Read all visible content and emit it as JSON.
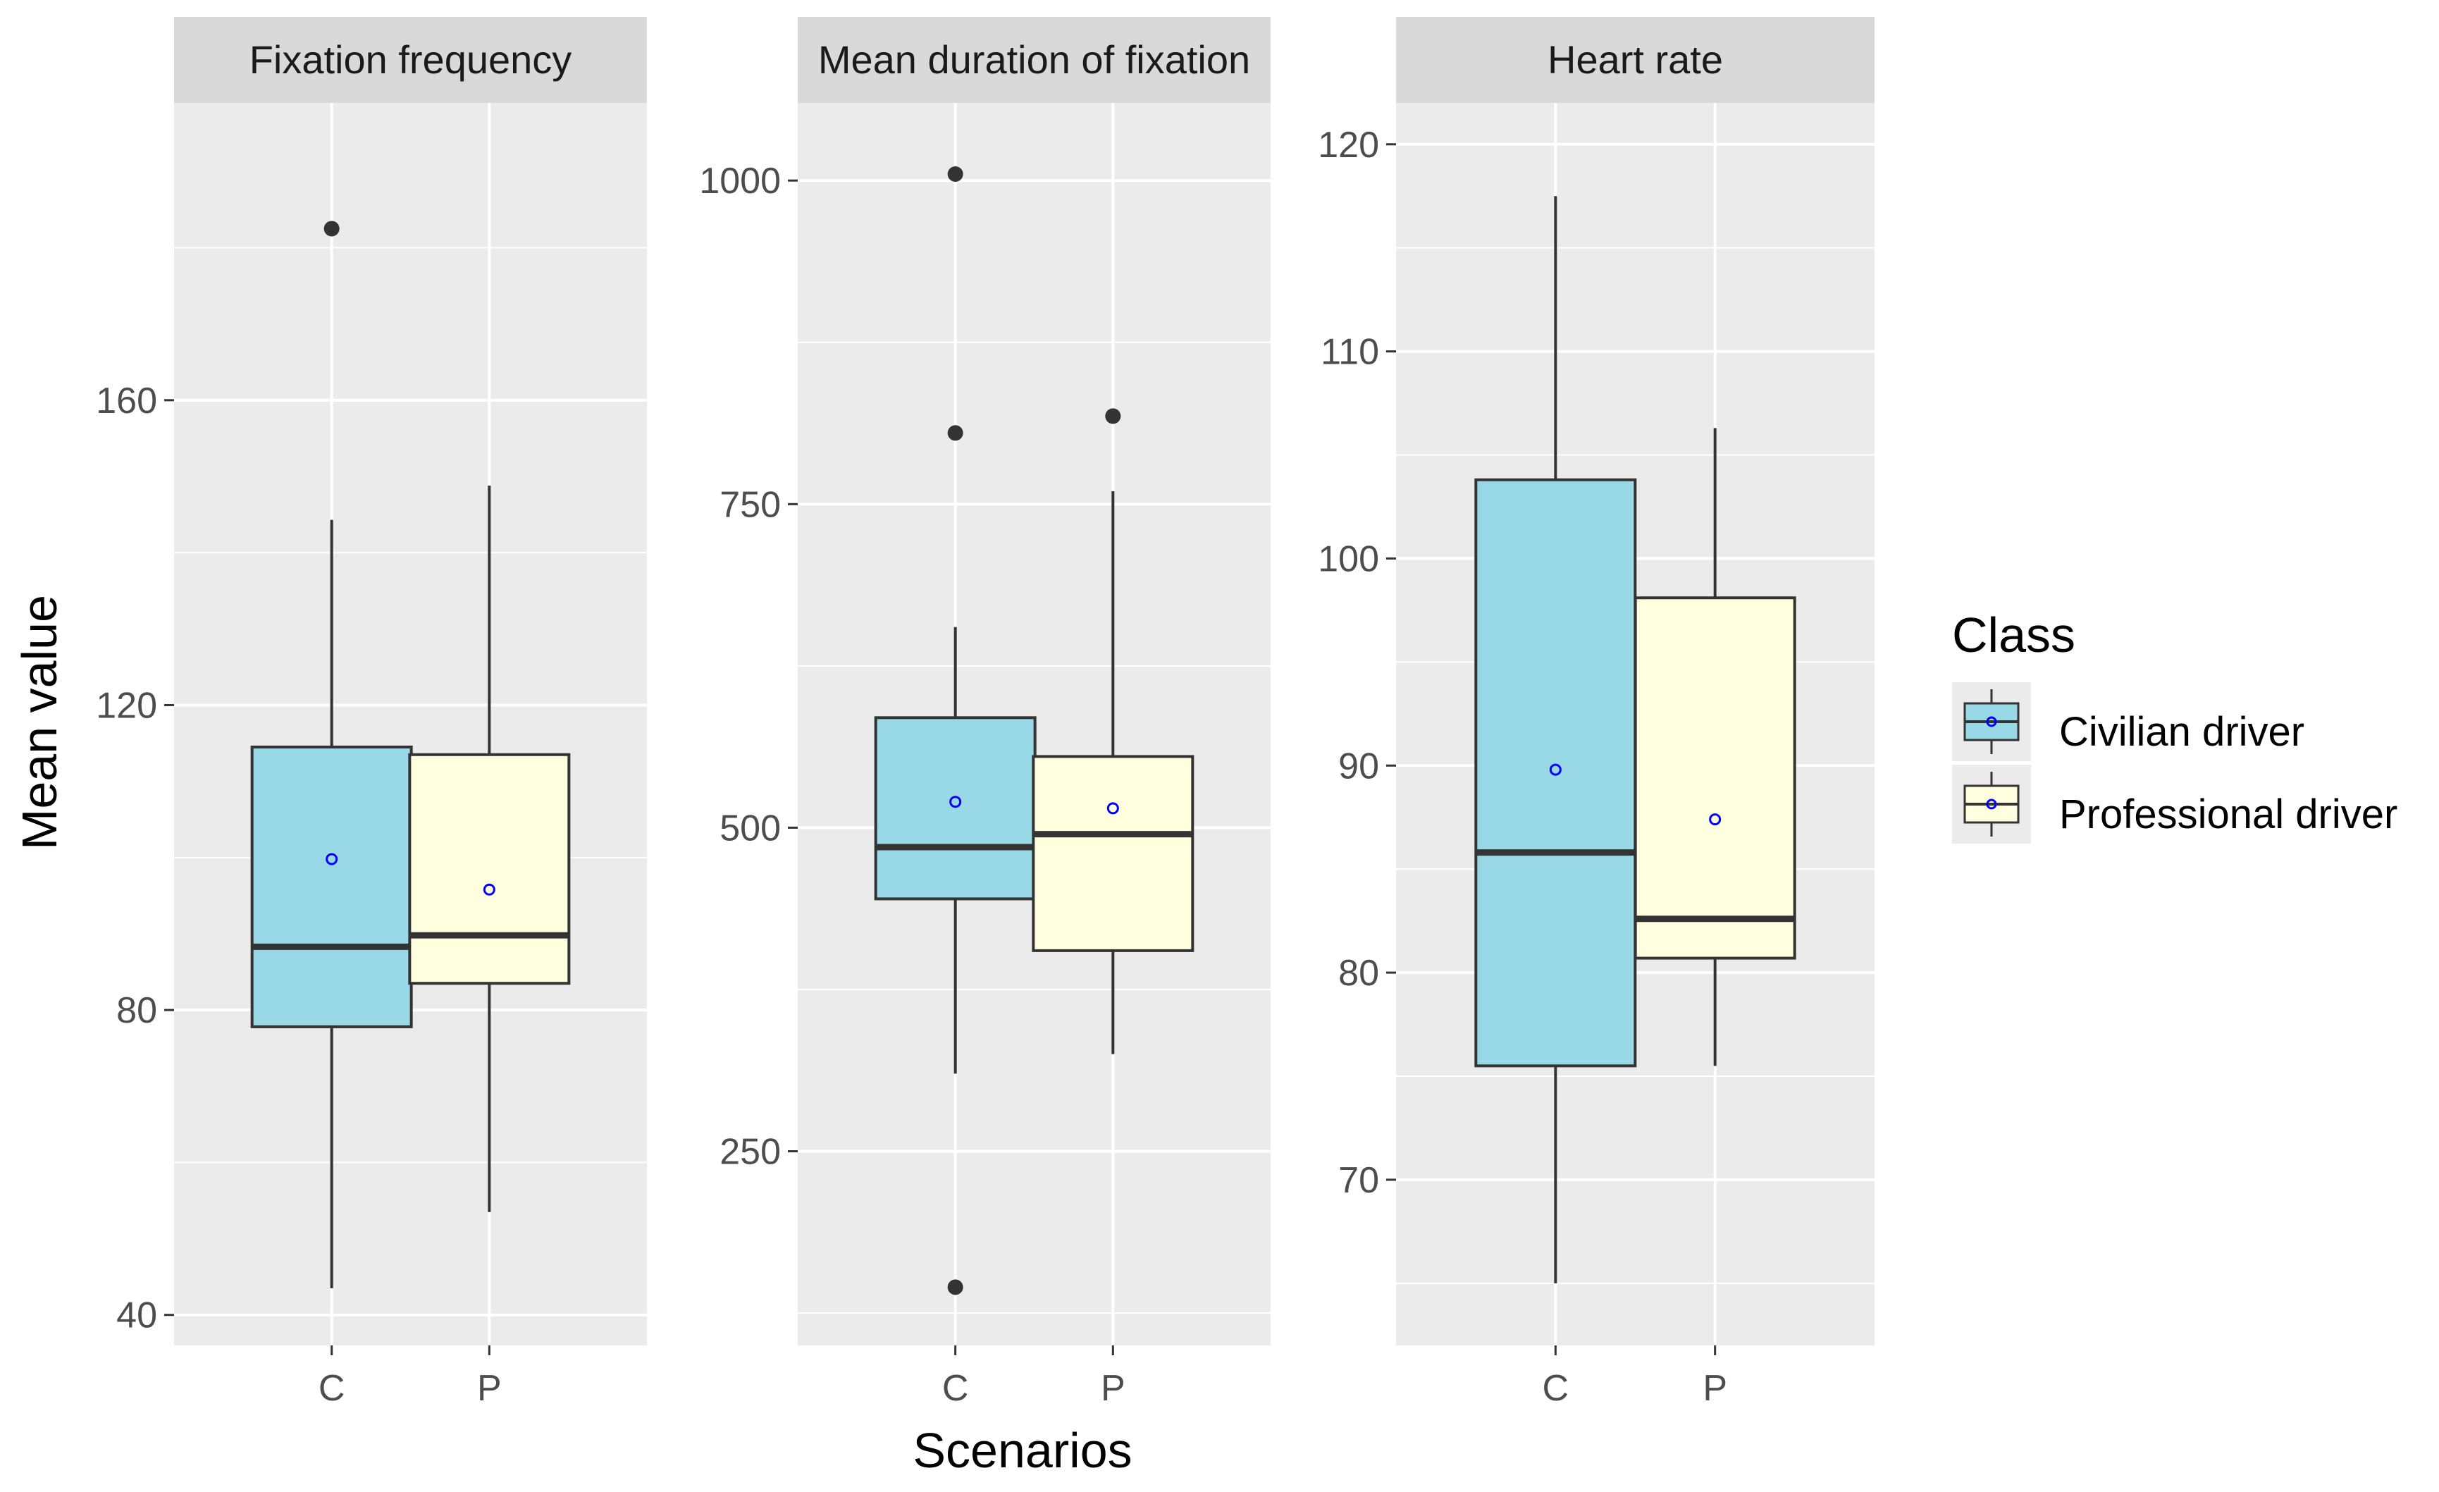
{
  "chart_data": {
    "type": "boxplot",
    "xlabel": "Scenarios",
    "ylabel": "Mean value",
    "categories": [
      "C",
      "P"
    ],
    "legend": {
      "title": "Class",
      "position": "right",
      "entries": [
        {
          "label": "Civilian driver",
          "color": "#99d8e6"
        },
        {
          "label": "Professional driver",
          "color": "#ffffe0"
        }
      ]
    },
    "mean_marker_color": "#0000ff",
    "panels": [
      {
        "title": "Fixation frequency",
        "ylim": [
          36,
          199
        ],
        "yticks": [
          40,
          80,
          120,
          160
        ],
        "minor_yticks": [
          60,
          100,
          140,
          180
        ],
        "boxes": [
          {
            "category": "C",
            "class": "Civilian driver",
            "whisker_low": 43.5,
            "q1": 77.8,
            "median": 88.3,
            "q3": 114.5,
            "whisker_high": 144.3,
            "mean": 99.8,
            "outliers": [
              182.5
            ]
          },
          {
            "category": "P",
            "class": "Professional driver",
            "whisker_low": 53.5,
            "q1": 83.5,
            "median": 89.8,
            "q3": 113.5,
            "whisker_high": 148.8,
            "mean": 95.8,
            "outliers": []
          }
        ]
      },
      {
        "title": "Mean duration of fixation",
        "ylim": [
          100,
          1060
        ],
        "yticks": [
          250,
          500,
          750,
          1000
        ],
        "minor_yticks": [
          125,
          375,
          625,
          875
        ],
        "boxes": [
          {
            "category": "C",
            "class": "Civilian driver",
            "whisker_low": 310,
            "q1": 445,
            "median": 485,
            "q3": 585,
            "whisker_high": 655,
            "mean": 520,
            "outliers": [
              145,
              805,
              1005
            ]
          },
          {
            "category": "P",
            "class": "Professional driver",
            "whisker_low": 325,
            "q1": 405,
            "median": 495,
            "q3": 555,
            "whisker_high": 760,
            "mean": 515,
            "outliers": [
              818
            ]
          }
        ]
      },
      {
        "title": "Heart rate",
        "ylim": [
          62,
          122
        ],
        "yticks": [
          70,
          80,
          90,
          100,
          110,
          120
        ],
        "minor_yticks": [
          65,
          75,
          85,
          95,
          105,
          115
        ],
        "boxes": [
          {
            "category": "C",
            "class": "Civilian driver",
            "whisker_low": 65,
            "q1": 75.5,
            "median": 85.8,
            "q3": 103.8,
            "whisker_high": 117.5,
            "mean": 89.8,
            "outliers": []
          },
          {
            "category": "P",
            "class": "Professional driver",
            "whisker_low": 75.5,
            "q1": 80.7,
            "median": 82.6,
            "q3": 98.1,
            "whisker_high": 106.3,
            "mean": 87.4,
            "outliers": []
          }
        ]
      }
    ]
  }
}
